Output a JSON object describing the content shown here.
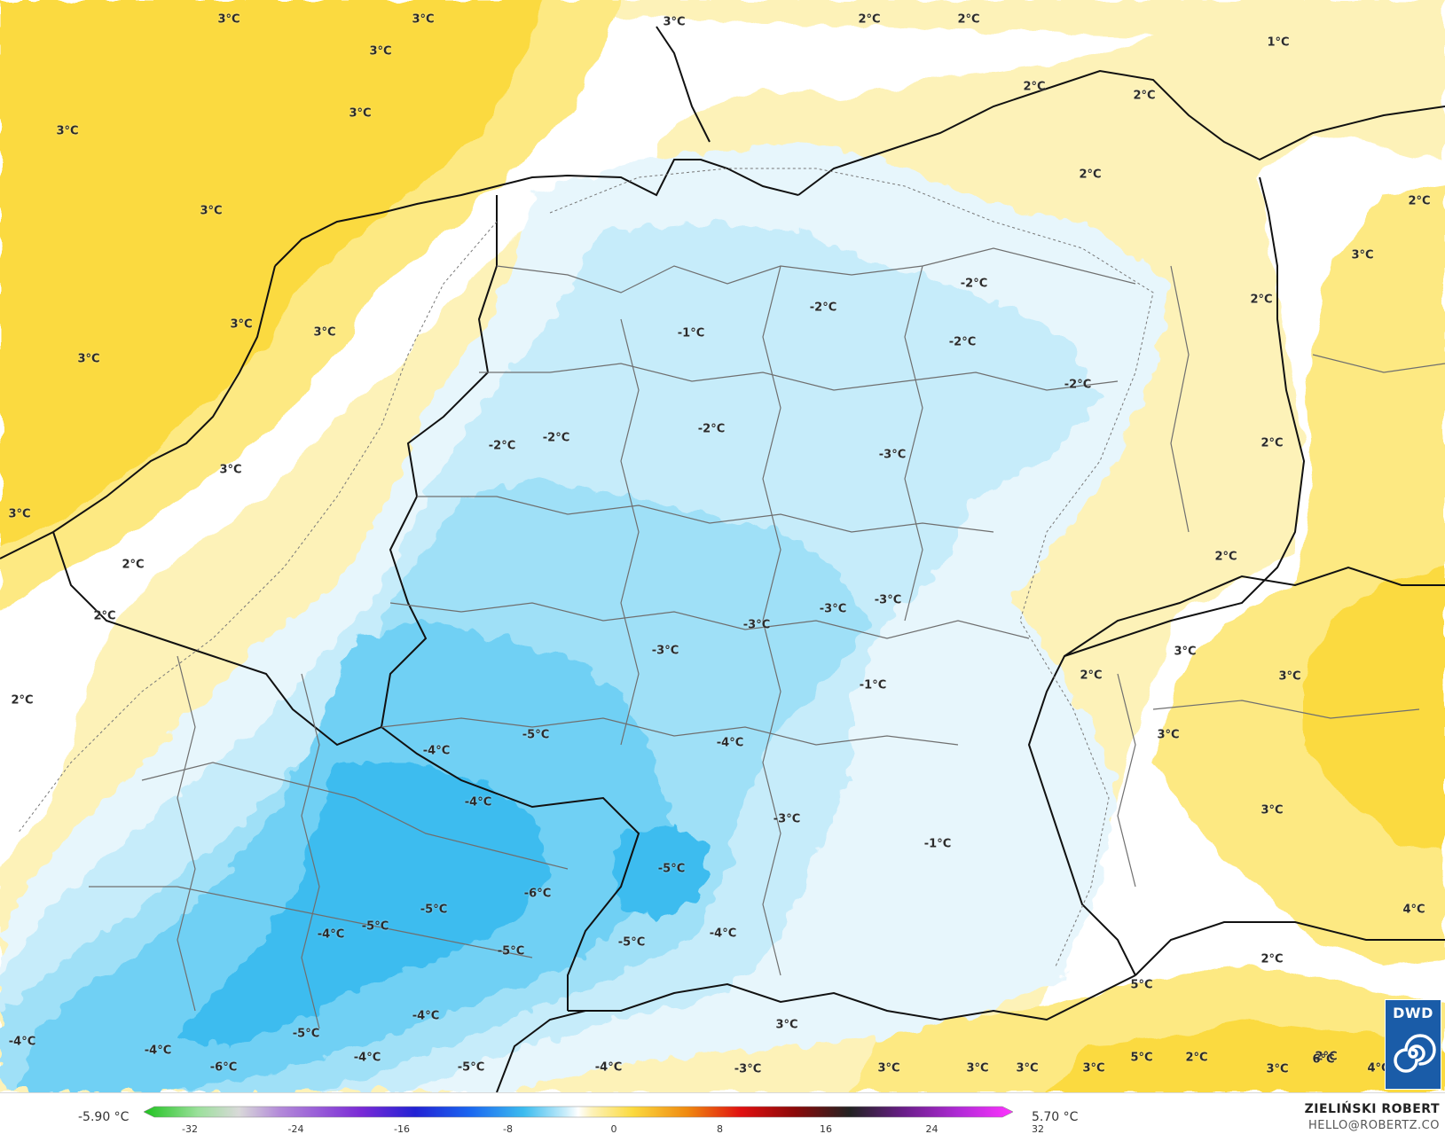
{
  "map": {
    "colors": {
      "warm_pale": "#fdf2b8",
      "warm_mid": "#fde982",
      "warm_strong": "#fbda3f",
      "warm_deep": "#f5c518",
      "neutral": "#ffffff",
      "cold_pale": "#e7f6fc",
      "cold_light": "#c6ecfa",
      "cold_mid": "#9fe0f7",
      "cold_strong": "#6fd0f4",
      "cold_deep": "#3cbcef",
      "border_country": "#111111",
      "border_region": "#6f6f6f",
      "contour": "#777777"
    },
    "temperature_labels": [
      "3°C",
      "3°C",
      "3°C",
      "3°C",
      "3°C",
      "3°C",
      "3°C",
      "3°C",
      "3°C",
      "3°C",
      "3°C",
      "2°C",
      "2°C",
      "2°C",
      "2°C",
      "2°C",
      "2°C",
      "1°C",
      "2°C",
      "2°C",
      "2°C",
      "3°C",
      "2°C",
      "2°C",
      "2°C",
      "2°C",
      "3°C",
      "3°C",
      "3°C",
      "3°C",
      "2°C",
      "4°C",
      "2°C",
      "3°C",
      "6°C",
      "4°C",
      "5°C",
      "5°C",
      "3°C",
      "3°C",
      "3°C",
      "3°C",
      "3°C",
      "3°C",
      "2°C",
      "-1°C",
      "-2°C",
      "-2°C",
      "-2°C",
      "-2°C",
      "-2°C",
      "-2°C",
      "-3°C",
      "-2°C",
      "-3°C",
      "-3°C",
      "-3°C",
      "-3°C",
      "-1°C",
      "-4°C",
      "-3°C",
      "-1°C",
      "-5°C",
      "-4°C",
      "-4°C",
      "-5°C",
      "-6°C",
      "-5°C",
      "-5°C",
      "-4°C",
      "-5°C",
      "-5°C",
      "-4°C",
      "-5°C",
      "-4°C",
      "-4°C",
      "-4°C",
      "-6°C",
      "-5°C",
      "-4°C",
      "-3°C",
      "-4°C"
    ]
  },
  "legend": {
    "min_label": "-5.90 °C",
    "max_label": "5.70 °C",
    "range": [
      -32,
      32
    ],
    "ticks": [
      "-32",
      "-24",
      "-16",
      "-8",
      "0",
      "8",
      "16",
      "24",
      "32"
    ],
    "stops": [
      {
        "v": -32,
        "c": "#1ec21e"
      },
      {
        "v": -28,
        "c": "#9be09b"
      },
      {
        "v": -25,
        "c": "#d9d9d9"
      },
      {
        "v": -22,
        "c": "#b38ad9"
      },
      {
        "v": -16,
        "c": "#7a2ad6"
      },
      {
        "v": -12,
        "c": "#2222d4"
      },
      {
        "v": -8,
        "c": "#1a66f0"
      },
      {
        "v": -4,
        "c": "#3cbcef"
      },
      {
        "v": -1,
        "c": "#c6ecfa"
      },
      {
        "v": 0,
        "c": "#ffffff"
      },
      {
        "v": 1,
        "c": "#fdf2b8"
      },
      {
        "v": 4,
        "c": "#fbda3f"
      },
      {
        "v": 8,
        "c": "#f08a10"
      },
      {
        "v": 12,
        "c": "#e01010"
      },
      {
        "v": 16,
        "c": "#8a0a0a"
      },
      {
        "v": 20,
        "c": "#222222"
      },
      {
        "v": 24,
        "c": "#6a1e8a"
      },
      {
        "v": 28,
        "c": "#b02ad6"
      },
      {
        "v": 32,
        "c": "#ff33ff"
      }
    ]
  },
  "credit": {
    "name": "ZIELIŃSKI ROBERT",
    "email": "HELLO@ROBERTZ.CO"
  },
  "logo": {
    "text": "DWD",
    "icon": "dwd-spiral-icon"
  }
}
